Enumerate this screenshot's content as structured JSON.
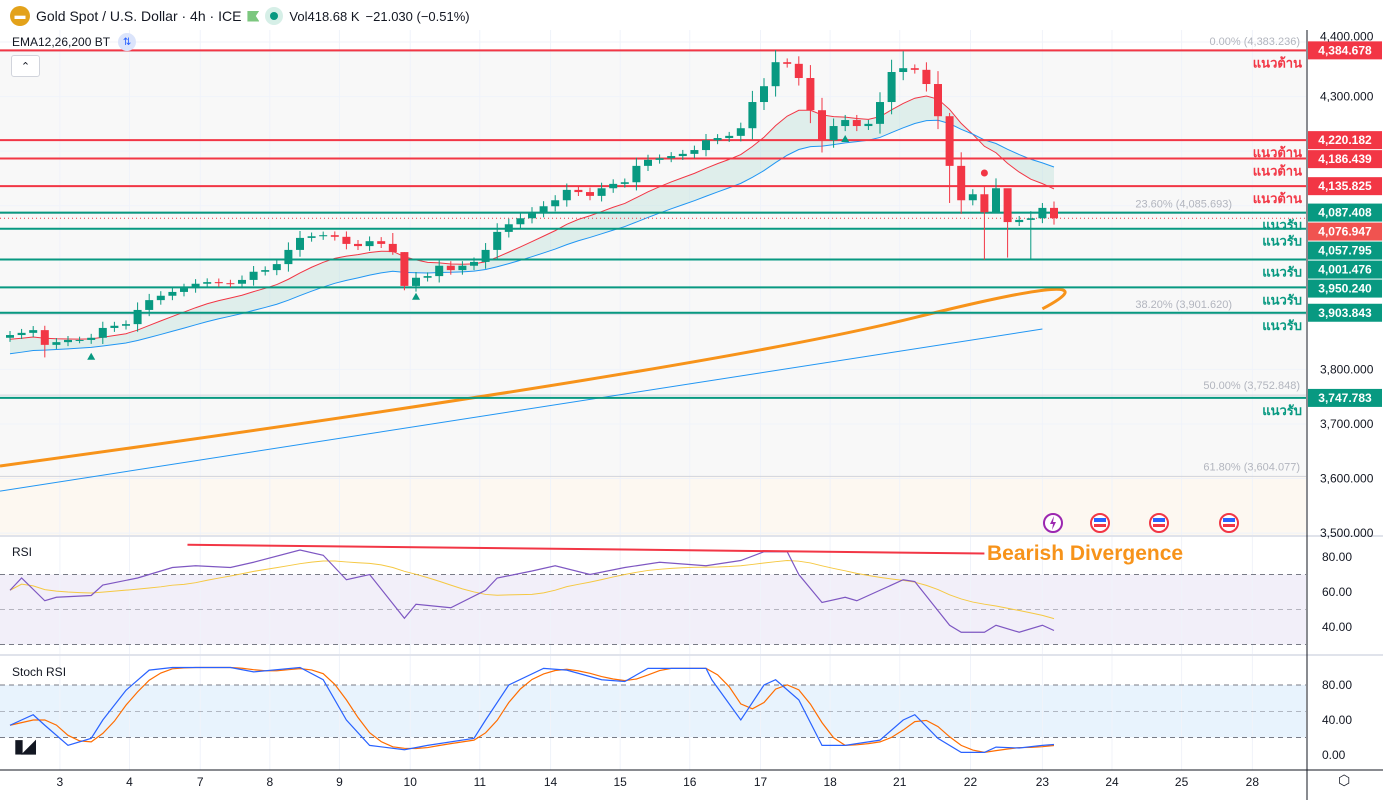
{
  "header": {
    "symbol": "Gold Spot / U.S. Dollar · 4h · ICE",
    "logo_glyph": "▬",
    "vol_label": "Vol",
    "vol_value": "418.68 K",
    "change": "−21.030 (−0.51%)",
    "indicator": "EMA12,26,200 BT",
    "collapse_glyph": "⌃"
  },
  "colors": {
    "up": "#089981",
    "down": "#f23645",
    "resist": "#f23645",
    "support": "#089981",
    "ema12": "#f23645",
    "ema26": "#2196f3",
    "ema200a": "#f7931a",
    "ema200b": "#2196f3",
    "rsi": "#7e57c2",
    "rsi_ma": "#f5c842",
    "stoch_k": "#2962ff",
    "stoch_d": "#ff6d00"
  },
  "price_axis": {
    "ticks": [
      "4,400.000",
      "4,300.000",
      "3,800.000",
      "3,700.000",
      "3,600.000",
      "3,500.000"
    ],
    "tick_values": [
      4400,
      4300,
      3800,
      3700,
      3600,
      3500
    ]
  },
  "levels": [
    {
      "value": 4384.678,
      "label": "4,384.678",
      "type": "resist",
      "text": "แนวต้าน"
    },
    {
      "value": 4220.182,
      "label": "4,220.182",
      "type": "resist",
      "text": "แนวต้าน"
    },
    {
      "value": 4186.439,
      "label": "4,186.439",
      "type": "resist",
      "text": "แนวต้าน"
    },
    {
      "value": 4135.825,
      "label": "4,135.825",
      "type": "resist",
      "text": "แนวต้าน"
    },
    {
      "value": 4087.408,
      "label": "4,087.408",
      "type": "support",
      "text": "แนวรับ"
    },
    {
      "value": 4057.795,
      "label": "4,057.795",
      "type": "support",
      "text": "แนวรับ"
    },
    {
      "value": 4001.476,
      "label": "4,001.476",
      "type": "support",
      "text": "แนวรับ"
    },
    {
      "value": 3950.24,
      "label": "3,950.240",
      "type": "support",
      "text": "แนวรับ"
    },
    {
      "value": 3903.843,
      "label": "3,903.843",
      "type": "support",
      "text": "แนวรับ"
    },
    {
      "value": 3747.783,
      "label": "3,747.783",
      "type": "support",
      "text": "แนวรับ"
    }
  ],
  "current_price": {
    "value": 4076.947,
    "label": "4,076.947",
    "color": "#f05350"
  },
  "fib": [
    {
      "value": 4383.236,
      "label": "0.00% (4,383.236)"
    },
    {
      "value": 4085.693,
      "label": "23.60% (4,085.693)"
    },
    {
      "value": 3901.62,
      "label": "38.20% (3,901.620)"
    },
    {
      "value": 3752.848,
      "label": "50.00% (3,752.848)"
    },
    {
      "value": 3604.077,
      "label": "61.80% (3,604.077)"
    }
  ],
  "x_axis": {
    "labels": [
      "3",
      "4",
      "7",
      "8",
      "9",
      "10",
      "11",
      "14",
      "15",
      "16",
      "17",
      "18",
      "21",
      "22",
      "23",
      "24",
      "25",
      "28"
    ],
    "label_bar_index": [
      4.3,
      10.3,
      16.4,
      22.4,
      28.4,
      34.5,
      40.5,
      46.6,
      52.6,
      58.6,
      64.7,
      70.7,
      76.7,
      82.8,
      89,
      95,
      101,
      107.1
    ]
  },
  "chart_data": {
    "type": "candlestick",
    "timeframe": "4h",
    "first_open": 3858,
    "closes": [
      3863,
      3867,
      3872,
      3845,
      3850,
      3854,
      3854,
      3858,
      3876,
      3880,
      3883,
      3909,
      3927,
      3935,
      3942,
      3949,
      3957,
      3960,
      3958,
      3957,
      3964,
      3979,
      3982,
      3993,
      4019,
      4041,
      4044,
      4046,
      4043,
      4030,
      4026,
      4035,
      4030,
      4015,
      3953,
      3968,
      3971,
      3990,
      3982,
      3990,
      3997,
      4019,
      4052,
      4066,
      4077,
      4088,
      4099,
      4110,
      4129,
      4125,
      4118,
      4132,
      4140,
      4143,
      4173,
      4184,
      4187,
      4191,
      4195,
      4202,
      4220,
      4224,
      4228,
      4242,
      4290,
      4319,
      4363,
      4360,
      4334,
      4275,
      4220,
      4246,
      4257,
      4246,
      4250,
      4290,
      4345,
      4352,
      4349,
      4323,
      4264,
      4173,
      4110,
      4121,
      4088,
      4132,
      4070,
      4074,
      4077,
      4096,
      4077
    ],
    "wick_extremes": [
      [
        3,
        3880,
        3822
      ],
      [
        33,
        4050,
        4010
      ],
      [
        34,
        4015,
        3945
      ],
      [
        66,
        4385,
        4300
      ],
      [
        77,
        4383,
        4330
      ],
      [
        81,
        4270,
        4105
      ],
      [
        84,
        4135,
        4001
      ],
      [
        85,
        4150,
        4100
      ],
      [
        86,
        4100,
        4005
      ],
      [
        88,
        4090,
        4002
      ],
      [
        89,
        4105,
        4068
      ]
    ],
    "ema12_seed": 3854,
    "ema26_seed": 3826,
    "ema200_orange": {
      "start": 3623,
      "end": 3911
    },
    "ema200_blue": {
      "start": 3577,
      "end": 3874
    },
    "buy_markers": [
      7,
      35,
      72
    ],
    "sell_markers": [
      84
    ],
    "ylim": [
      3500,
      4400
    ],
    "rsi": {
      "title": "RSI",
      "ticks": [
        "80.00",
        "60.00",
        "40.00"
      ],
      "tick_values": [
        80,
        60,
        40
      ],
      "points": [
        [
          0,
          61
        ],
        [
          1,
          68
        ],
        [
          3,
          55
        ],
        [
          4,
          57
        ],
        [
          7,
          58
        ],
        [
          8,
          64
        ],
        [
          11,
          68
        ],
        [
          14,
          74
        ],
        [
          16,
          75
        ],
        [
          19,
          74
        ],
        [
          21,
          77
        ],
        [
          25,
          84
        ],
        [
          27,
          81
        ],
        [
          29,
          67
        ],
        [
          31,
          70
        ],
        [
          34,
          45
        ],
        [
          35,
          53
        ],
        [
          38,
          51
        ],
        [
          41,
          61
        ],
        [
          42,
          68
        ],
        [
          45,
          72
        ],
        [
          47,
          75
        ],
        [
          50,
          70
        ],
        [
          53,
          74
        ],
        [
          56,
          77
        ],
        [
          60,
          75
        ],
        [
          63,
          78
        ],
        [
          65,
          83
        ],
        [
          67,
          83
        ],
        [
          68,
          70
        ],
        [
          70,
          54
        ],
        [
          72,
          57
        ],
        [
          73,
          55
        ],
        [
          75,
          61
        ],
        [
          77,
          67
        ],
        [
          78,
          66
        ],
        [
          81,
          41
        ],
        [
          82,
          37
        ],
        [
          84,
          37
        ],
        [
          85,
          41
        ],
        [
          87,
          37
        ],
        [
          89,
          41
        ],
        [
          90,
          38
        ]
      ],
      "ma_length": 14,
      "divergence": {
        "from": [
          15.3,
          87
        ],
        "to": [
          84,
          82
        ],
        "label": "Bearish Divergence"
      }
    },
    "stoch_rsi": {
      "title": "Stoch RSI",
      "ticks": [
        "80.00",
        "40.00",
        "0.00"
      ],
      "tick_values": [
        80,
        40,
        0
      ],
      "k_points": [
        [
          0,
          34
        ],
        [
          2,
          46
        ],
        [
          3,
          34
        ],
        [
          5,
          11
        ],
        [
          7,
          19
        ],
        [
          8,
          40
        ],
        [
          10,
          74
        ],
        [
          12,
          97
        ],
        [
          14,
          100
        ],
        [
          19,
          100
        ],
        [
          21,
          95
        ],
        [
          25,
          100
        ],
        [
          27,
          86
        ],
        [
          29,
          40
        ],
        [
          31,
          11
        ],
        [
          34,
          6
        ],
        [
          36,
          11
        ],
        [
          40,
          19
        ],
        [
          41,
          40
        ],
        [
          43,
          80
        ],
        [
          46,
          99
        ],
        [
          48,
          97
        ],
        [
          51,
          86
        ],
        [
          53,
          84
        ],
        [
          55,
          99
        ],
        [
          60,
          99
        ],
        [
          60.5,
          86
        ],
        [
          63,
          40
        ],
        [
          65,
          80
        ],
        [
          66,
          86
        ],
        [
          68,
          63
        ],
        [
          70,
          11
        ],
        [
          72,
          11
        ],
        [
          75,
          17
        ],
        [
          77,
          40
        ],
        [
          78,
          46
        ],
        [
          80,
          19
        ],
        [
          82,
          3
        ],
        [
          84,
          3
        ],
        [
          85,
          9
        ],
        [
          87,
          8
        ],
        [
          89,
          11
        ],
        [
          90,
          12
        ]
      ],
      "d_length": 3
    }
  },
  "events": [
    "lightning-event",
    "us-flag-event",
    "us-flag-event",
    "us-flag-event"
  ],
  "branding": {
    "tv_logo": "17"
  },
  "footer": {
    "settings_glyph": "⬡"
  }
}
